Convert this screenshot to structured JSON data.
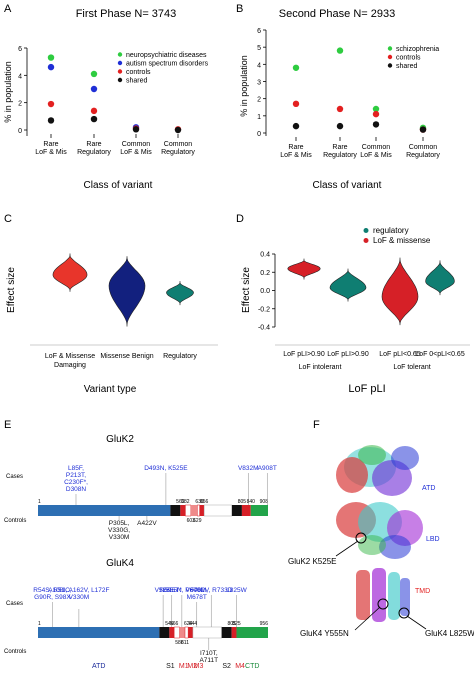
{
  "panels": {
    "A": {
      "letter": "A",
      "title": "First Phase N= 3743",
      "xlabel": "Class of variant",
      "ylabel": "% in population"
    },
    "B": {
      "letter": "B",
      "title": "Second Phase N= 2933",
      "xlabel": "Class of variant",
      "ylabel": "% in population"
    },
    "C": {
      "letter": "C",
      "xlabel": "Variant type",
      "ylabel": "Effect size"
    },
    "D": {
      "letter": "D",
      "xlabel": "LoF pLI",
      "ylabel": "Effect size",
      "group_labels": [
        "LoF intolerant",
        "LoF tolerant"
      ]
    },
    "E": {
      "letter": "E",
      "row_cases": "Cases",
      "row_controls": "Controls"
    },
    "F": {
      "letter": "F",
      "domain_labels": [
        "ATD",
        "LBD",
        "TMD"
      ],
      "mutation_labels": [
        "GluK2 K525E",
        "GluK4 Y555N",
        "GluK4 L825W"
      ]
    }
  },
  "chart_data": [
    {
      "panel": "A",
      "type": "scatter",
      "categories": [
        "Rare\nLoF & Mis",
        "Rare\nRegulatory",
        "Common\nLoF & Mis",
        "Common\nRegulatory"
      ],
      "ylim": [
        0,
        6
      ],
      "yticks": [
        0,
        2,
        4,
        6
      ],
      "legend_position": "top-right",
      "series": [
        {
          "name": "neuropsychiatric diseases",
          "color": "#2ecc40",
          "values": [
            5.3,
            4.1,
            null,
            null
          ]
        },
        {
          "name": "autism spectrum disorders",
          "color": "#1f2fd6",
          "values": [
            4.6,
            3.0,
            0.2,
            null
          ]
        },
        {
          "name": "controls",
          "color": "#e32020",
          "values": [
            1.9,
            1.4,
            0.1,
            0.05
          ]
        },
        {
          "name": "shared",
          "color": "#111111",
          "values": [
            0.7,
            0.8,
            0.05,
            0.0
          ]
        }
      ]
    },
    {
      "panel": "B",
      "type": "scatter",
      "categories": [
        "Rare\nLoF & Mis",
        "Rare\nRegulatory",
        "Common\nLoF & Mis",
        "Common\nRegulatory"
      ],
      "ylim": [
        0,
        6
      ],
      "yticks": [
        0,
        1,
        2,
        3,
        4,
        5,
        6
      ],
      "legend_position": "top-right",
      "series": [
        {
          "name": "schizophrenia",
          "color": "#2ecc40",
          "values": [
            3.8,
            4.8,
            1.4,
            0.3
          ]
        },
        {
          "name": "controls",
          "color": "#e32020",
          "values": [
            1.7,
            1.4,
            1.1,
            0.2
          ]
        },
        {
          "name": "shared",
          "color": "#111111",
          "values": [
            0.4,
            0.4,
            0.5,
            0.2
          ]
        }
      ]
    },
    {
      "panel": "C",
      "type": "violin",
      "categories": [
        "LoF & Missense\nDamaging",
        "Missense Benign",
        "Regulatory"
      ],
      "ylim": [
        -0.4,
        0.5
      ],
      "violins": [
        {
          "color": "#e8352b",
          "min": 0.03,
          "max": 0.46,
          "center": 0.22,
          "width": 0.95
        },
        {
          "color": "#12207e",
          "min": -0.36,
          "max": 0.43,
          "center": 0.1,
          "width": 1.0
        },
        {
          "color": "#0f7e72",
          "min": -0.12,
          "max": 0.15,
          "center": 0.02,
          "width": 0.75
        }
      ]
    },
    {
      "panel": "D",
      "type": "violin",
      "categories": [
        "LoF pLI>0.90",
        "LoF pLI>0.90",
        "LoF pLI<0.65",
        "LoF 0<pLI<0.65"
      ],
      "ylim": [
        -0.4,
        0.4
      ],
      "yticks": [
        -0.4,
        -0.2,
        0.0,
        0.2,
        0.4
      ],
      "legend_position": "top-right",
      "legend": [
        {
          "name": "regulatory",
          "color": "#0f7e72"
        },
        {
          "name": "LoF & missense",
          "color": "#d62027"
        }
      ],
      "violins": [
        {
          "color": "#d62027",
          "min": 0.12,
          "max": 0.35,
          "center": 0.24,
          "width": 0.9
        },
        {
          "color": "#0f7e72",
          "min": -0.12,
          "max": 0.24,
          "center": 0.03,
          "width": 1.0
        },
        {
          "color": "#d62027",
          "min": -0.38,
          "max": 0.36,
          "center": -0.07,
          "width": 1.0
        },
        {
          "color": "#0f7e72",
          "min": -0.05,
          "max": 0.33,
          "center": 0.1,
          "width": 0.8
        }
      ]
    }
  ],
  "genes": [
    {
      "title": "GluK2",
      "start": "1",
      "end": "908",
      "positions": [
        {
          "label": "562",
          "p": 562
        },
        {
          "label": "582",
          "p": 582
        },
        {
          "label": "603",
          "p": 603
        },
        {
          "label": "629",
          "p": 629
        },
        {
          "label": "638",
          "p": 638
        },
        {
          "label": "656",
          "p": 656
        },
        {
          "label": "805",
          "p": 805
        },
        {
          "label": "840",
          "p": 840
        }
      ],
      "cases": [
        {
          "text": "L85F,\nP213T,\nC230F*,\nD308N",
          "pos": 150,
          "color": "#1f2fd6"
        },
        {
          "text": "D493N, K525E",
          "pos": 505,
          "color": "#1f2fd6"
        },
        {
          "text": "V832M",
          "pos": 830,
          "color": "#1f2fd6"
        },
        {
          "text": "A908T",
          "pos": 905,
          "color": "#1f2fd6"
        }
      ],
      "controls": [
        {
          "text": "P305L,\nV330G,\nV330M",
          "pos": 320,
          "color": "#111111"
        },
        {
          "text": "A422V",
          "pos": 430,
          "color": "#111111"
        }
      ]
    },
    {
      "title": "GluK4",
      "start": "1",
      "end": "956",
      "positions": [
        {
          "label": "546",
          "p": 546
        },
        {
          "label": "566",
          "p": 566
        },
        {
          "label": "588",
          "p": 588
        },
        {
          "label": "611",
          "p": 611
        },
        {
          "label": "624",
          "p": 624
        },
        {
          "label": "644",
          "p": 644
        },
        {
          "label": "805",
          "p": 805
        },
        {
          "label": "825",
          "p": 825
        }
      ],
      "cases": [
        {
          "text": "R54S, R51C,\nG90R, S98X",
          "pos": 60,
          "color": "#1f2fd6"
        },
        {
          "text": "A108I, A162V, L172F\n\nV330M",
          "pos": 170,
          "color": "#1f2fd6"
        },
        {
          "text": "V528I",
          "pos": 520,
          "color": "#1f2fd6"
        },
        {
          "text": "Y555N",
          "pos": 556,
          "color": "#1f2fd6"
        },
        {
          "text": "N595T*, P600L",
          "pos": 598,
          "color": "#1f2fd6"
        },
        {
          "text": "V646M,\nM678T",
          "pos": 660,
          "color": "#1f2fd6"
        },
        {
          "text": "F702V, R733D",
          "pos": 720,
          "color": "#1f2fd6"
        },
        {
          "text": "L825W",
          "pos": 825,
          "color": "#1f2fd6"
        }
      ],
      "controls": [
        {
          "text": "I710T,\nA711T",
          "pos": 710,
          "color": "#111111"
        }
      ],
      "domains": [
        {
          "label": "ATD",
          "color": "#1a2a9a"
        },
        {
          "label": "S1",
          "color": "#111111"
        },
        {
          "label": "M1",
          "color": "#d62027"
        },
        {
          "label": "M2",
          "color": "#d62027"
        },
        {
          "label": "M3",
          "color": "#d62027"
        },
        {
          "label": "S2",
          "color": "#111111"
        },
        {
          "label": "M4",
          "color": "#d62027"
        },
        {
          "label": "CTD",
          "color": "#1a8a3a"
        }
      ]
    }
  ]
}
